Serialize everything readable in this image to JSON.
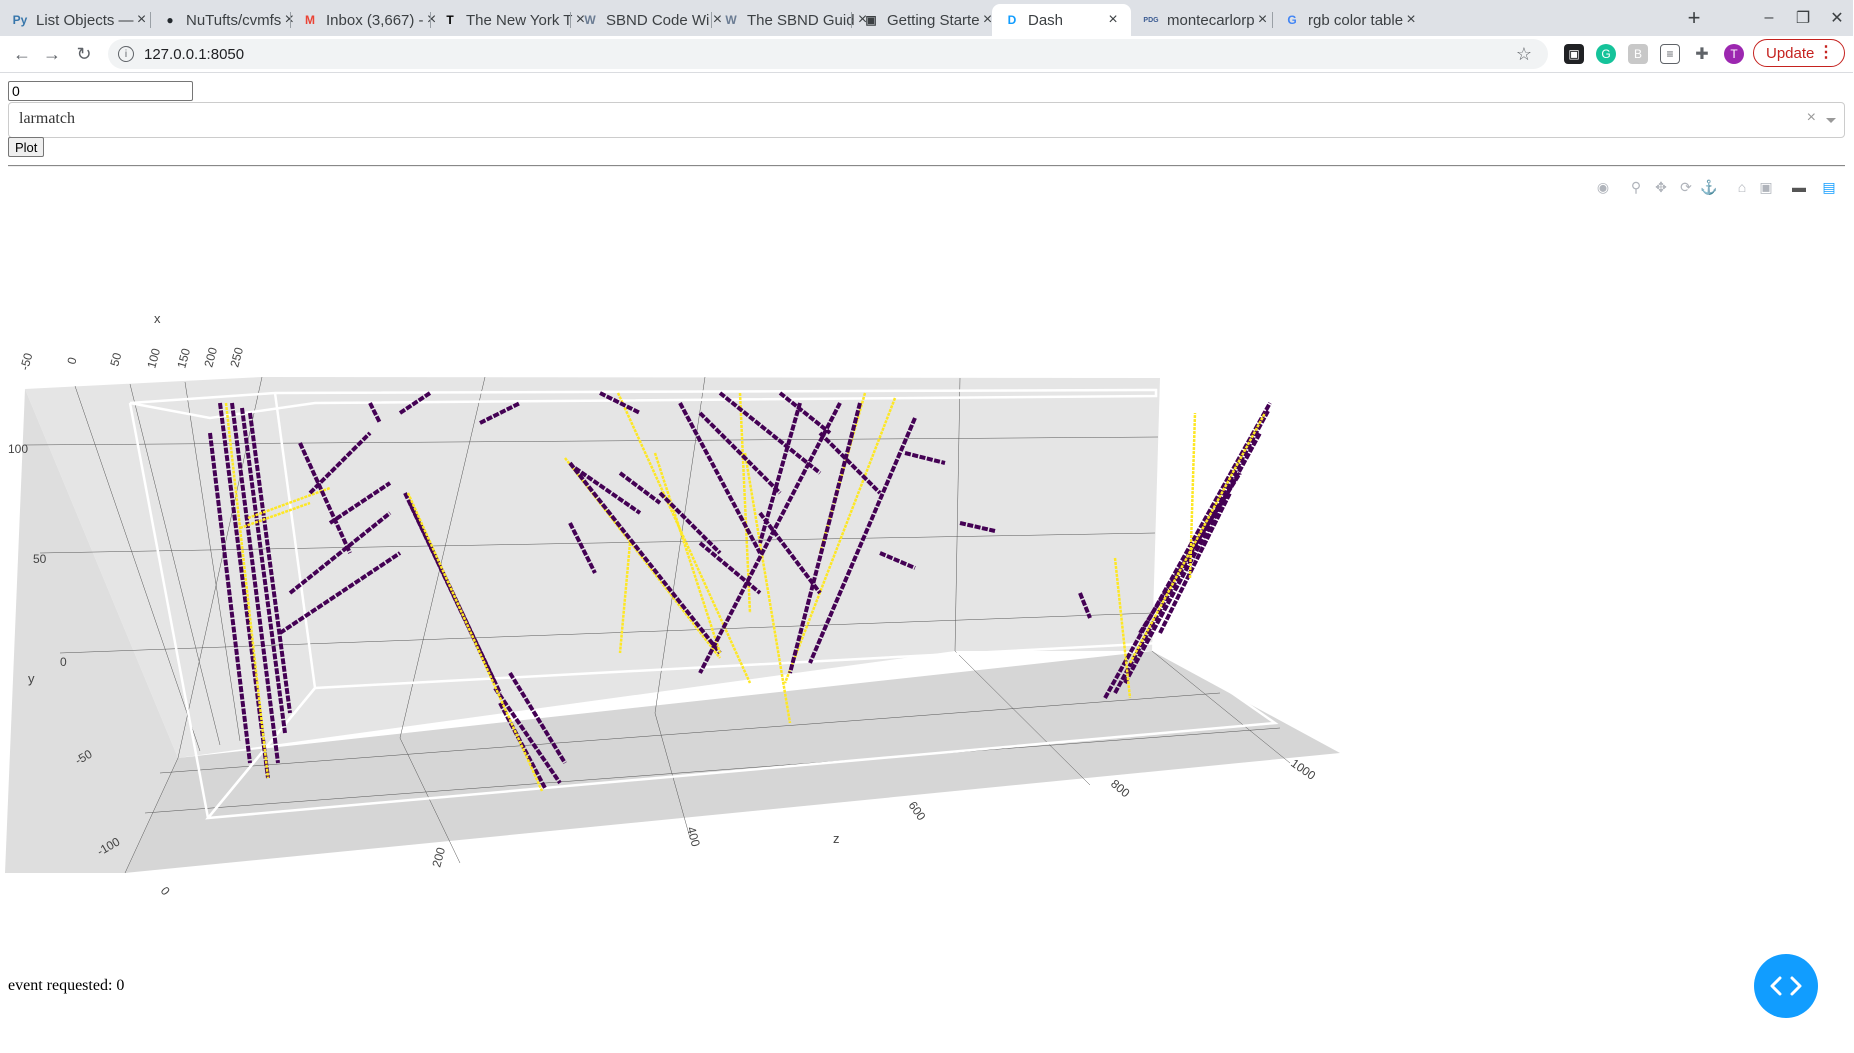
{
  "browser": {
    "tabs": [
      {
        "title": "List Objects —",
        "favicon": "python-icon",
        "fav_color": "#3776ab",
        "fav_text": "Py",
        "active": false
      },
      {
        "title": "NuTufts/cvmfs",
        "favicon": "github-icon",
        "fav_color": "#24292e",
        "fav_text": "●",
        "active": false
      },
      {
        "title": "Inbox (3,667) -",
        "favicon": "gmail-icon",
        "fav_color": "#ea4335",
        "fav_text": "M",
        "active": false
      },
      {
        "title": "The New York T",
        "favicon": "nyt-icon",
        "fav_color": "#000000",
        "fav_text": "T",
        "active": false
      },
      {
        "title": "SBND Code Wi",
        "favicon": "wiki-icon",
        "fav_color": "#6b7c93",
        "fav_text": "W",
        "active": false
      },
      {
        "title": "The SBND Guid",
        "favicon": "wiki-icon",
        "fav_color": "#6b7c93",
        "fav_text": "W",
        "active": false
      },
      {
        "title": "Getting Starte",
        "favicon": "book-icon",
        "fav_color": "#3c4043",
        "fav_text": "▣",
        "active": false
      },
      {
        "title": "Dash",
        "favicon": "dash-icon",
        "fav_color": "#119dff",
        "fav_text": "D",
        "active": true
      },
      {
        "title": "montecarlorp",
        "favicon": "pdg-icon",
        "fav_color": "#3b5b92",
        "fav_text": "PDG",
        "active": false
      },
      {
        "title": "rgb color table",
        "favicon": "google-icon",
        "fav_color": "#4285f4",
        "fav_text": "G",
        "active": false
      }
    ],
    "url": "127.0.0.1:8050",
    "update_label": "Update",
    "profile_initial": "T"
  },
  "controls": {
    "event_input_value": "0",
    "dropdown_value": "larmatch",
    "dropdown_clear": "×",
    "plot_button_label": "Plot"
  },
  "modebar_icons": [
    "camera-icon",
    "zoom-icon",
    "pan-icon",
    "orbit-rotation-icon",
    "turntable-rotation-icon",
    "reset-camera-icon",
    "camera-last-save-icon",
    "hover-toggle-icon",
    "plotly-logo-icon"
  ],
  "chart_data": {
    "type": "scatter3d",
    "axes": {
      "x": {
        "label": "x",
        "ticks": [
          "-50",
          "0",
          "50",
          "100",
          "150",
          "200",
          "250"
        ]
      },
      "y": {
        "label": "y",
        "ticks": [
          "-100",
          "-50",
          "0",
          "50",
          "100"
        ]
      },
      "z": {
        "label": "z",
        "ticks": [
          "0",
          "200",
          "400",
          "600",
          "800",
          "1000"
        ]
      }
    },
    "colors": {
      "track_hits": "#440154",
      "shower_hits": "#fde725",
      "background": "#e5e5e5",
      "grid": "#ffffff"
    },
    "segments": [
      {
        "c": 0,
        "p": [
          [
            220,
            330
          ],
          [
            268,
            705
          ]
        ]
      },
      {
        "c": 0,
        "p": [
          [
            232,
            330
          ],
          [
            278,
            690
          ]
        ]
      },
      {
        "c": 0,
        "p": [
          [
            242,
            335
          ],
          [
            285,
            660
          ]
        ]
      },
      {
        "c": 0,
        "p": [
          [
            210,
            360
          ],
          [
            250,
            690
          ]
        ]
      },
      {
        "c": 0,
        "p": [
          [
            250,
            340
          ],
          [
            290,
            640
          ]
        ]
      },
      {
        "c": 1,
        "p": [
          [
            226,
            330
          ],
          [
            268,
            705
          ]
        ]
      },
      {
        "c": 1,
        "p": [
          [
            248,
            445
          ],
          [
            330,
            415
          ]
        ]
      },
      {
        "c": 1,
        "p": [
          [
            240,
            455
          ],
          [
            310,
            430
          ]
        ]
      },
      {
        "c": 0,
        "p": [
          [
            300,
            370
          ],
          [
            350,
            480
          ]
        ]
      },
      {
        "c": 0,
        "p": [
          [
            310,
            420
          ],
          [
            370,
            360
          ]
        ]
      },
      {
        "c": 0,
        "p": [
          [
            330,
            450
          ],
          [
            390,
            410
          ]
        ]
      },
      {
        "c": 0,
        "p": [
          [
            290,
            520
          ],
          [
            390,
            440
          ]
        ]
      },
      {
        "c": 0,
        "p": [
          [
            280,
            560
          ],
          [
            400,
            480
          ]
        ]
      },
      {
        "c": 0,
        "p": [
          [
            405,
            420
          ],
          [
            495,
            610
          ]
        ]
      },
      {
        "c": 0,
        "p": [
          [
            410,
            430
          ],
          [
            500,
            620
          ]
        ]
      },
      {
        "c": 0,
        "p": [
          [
            495,
            615
          ],
          [
            560,
            710
          ]
        ]
      },
      {
        "c": 0,
        "p": [
          [
            500,
            630
          ],
          [
            545,
            715
          ]
        ]
      },
      {
        "c": 0,
        "p": [
          [
            510,
            600
          ],
          [
            565,
            690
          ]
        ]
      },
      {
        "c": 1,
        "p": [
          [
            408,
            420
          ],
          [
            542,
            718
          ]
        ]
      },
      {
        "c": 1,
        "p": [
          [
            565,
            385
          ],
          [
            720,
            585
          ]
        ]
      },
      {
        "c": 0,
        "p": [
          [
            570,
            390
          ],
          [
            720,
            580
          ]
        ]
      },
      {
        "c": 0,
        "p": [
          [
            575,
            395
          ],
          [
            640,
            440
          ]
        ]
      },
      {
        "c": 0,
        "p": [
          [
            570,
            450
          ],
          [
            595,
            500
          ]
        ]
      },
      {
        "c": 1,
        "p": [
          [
            618,
            320
          ],
          [
            750,
            610
          ]
        ]
      },
      {
        "c": 1,
        "p": [
          [
            655,
            380
          ],
          [
            720,
            580
          ]
        ]
      },
      {
        "c": 1,
        "p": [
          [
            740,
            320
          ],
          [
            750,
            540
          ]
        ]
      },
      {
        "c": 1,
        "p": [
          [
            745,
            380
          ],
          [
            790,
            650
          ]
        ]
      },
      {
        "c": 1,
        "p": [
          [
            895,
            325
          ],
          [
            785,
            610
          ]
        ]
      },
      {
        "c": 1,
        "p": [
          [
            865,
            320
          ],
          [
            820,
            480
          ]
        ]
      },
      {
        "c": 1,
        "p": [
          [
            630,
            470
          ],
          [
            620,
            580
          ]
        ]
      },
      {
        "c": 0,
        "p": [
          [
            680,
            330
          ],
          [
            760,
            480
          ]
        ]
      },
      {
        "c": 0,
        "p": [
          [
            700,
            340
          ],
          [
            780,
            420
          ]
        ]
      },
      {
        "c": 0,
        "p": [
          [
            720,
            320
          ],
          [
            820,
            400
          ]
        ]
      },
      {
        "c": 0,
        "p": [
          [
            800,
            330
          ],
          [
            760,
            470
          ]
        ]
      },
      {
        "c": 0,
        "p": [
          [
            820,
            360
          ],
          [
            880,
            420
          ]
        ]
      },
      {
        "c": 0,
        "p": [
          [
            840,
            330
          ],
          [
            700,
            600
          ]
        ]
      },
      {
        "c": 0,
        "p": [
          [
            860,
            330
          ],
          [
            790,
            600
          ]
        ]
      },
      {
        "c": 0,
        "p": [
          [
            915,
            345
          ],
          [
            810,
            590
          ]
        ]
      },
      {
        "c": 0,
        "p": [
          [
            700,
            470
          ],
          [
            760,
            520
          ]
        ]
      },
      {
        "c": 0,
        "p": [
          [
            660,
            420
          ],
          [
            720,
            480
          ]
        ]
      },
      {
        "c": 0,
        "p": [
          [
            620,
            400
          ],
          [
            660,
            430
          ]
        ]
      },
      {
        "c": 0,
        "p": [
          [
            760,
            440
          ],
          [
            820,
            520
          ]
        ]
      },
      {
        "c": 0,
        "p": [
          [
            600,
            320
          ],
          [
            640,
            340
          ]
        ]
      },
      {
        "c": 0,
        "p": [
          [
            780,
            320
          ],
          [
            830,
            360
          ]
        ]
      },
      {
        "c": 0,
        "p": [
          [
            880,
            480
          ],
          [
            915,
            495
          ]
        ]
      },
      {
        "c": 0,
        "p": [
          [
            960,
            450
          ],
          [
            995,
            458
          ]
        ]
      },
      {
        "c": 0,
        "p": [
          [
            905,
            380
          ],
          [
            945,
            390
          ]
        ]
      },
      {
        "c": 0,
        "p": [
          [
            400,
            340
          ],
          [
            430,
            320
          ]
        ]
      },
      {
        "c": 0,
        "p": [
          [
            480,
            350
          ],
          [
            520,
            330
          ]
        ]
      },
      {
        "c": 0,
        "p": [
          [
            370,
            330
          ],
          [
            380,
            350
          ]
        ]
      },
      {
        "c": 0,
        "p": [
          [
            1105,
            625
          ],
          [
            1270,
            330
          ]
        ]
      },
      {
        "c": 0,
        "p": [
          [
            1115,
            620
          ],
          [
            1268,
            338
          ]
        ]
      },
      {
        "c": 0,
        "p": [
          [
            1125,
            610
          ],
          [
            1260,
            360
          ]
        ]
      },
      {
        "c": 0,
        "p": [
          [
            1140,
            560
          ],
          [
            1240,
            400
          ]
        ]
      },
      {
        "c": 0,
        "p": [
          [
            1160,
            560
          ],
          [
            1230,
            420
          ]
        ]
      },
      {
        "c": 1,
        "p": [
          [
            1130,
            590
          ],
          [
            1265,
            340
          ]
        ]
      },
      {
        "c": 1,
        "p": [
          [
            1190,
            505
          ],
          [
            1195,
            340
          ]
        ]
      },
      {
        "c": 1,
        "p": [
          [
            1115,
            485
          ],
          [
            1130,
            625
          ]
        ]
      },
      {
        "c": 0,
        "p": [
          [
            1080,
            520
          ],
          [
            1090,
            545
          ]
        ]
      }
    ]
  },
  "status_text": "event requested: 0"
}
